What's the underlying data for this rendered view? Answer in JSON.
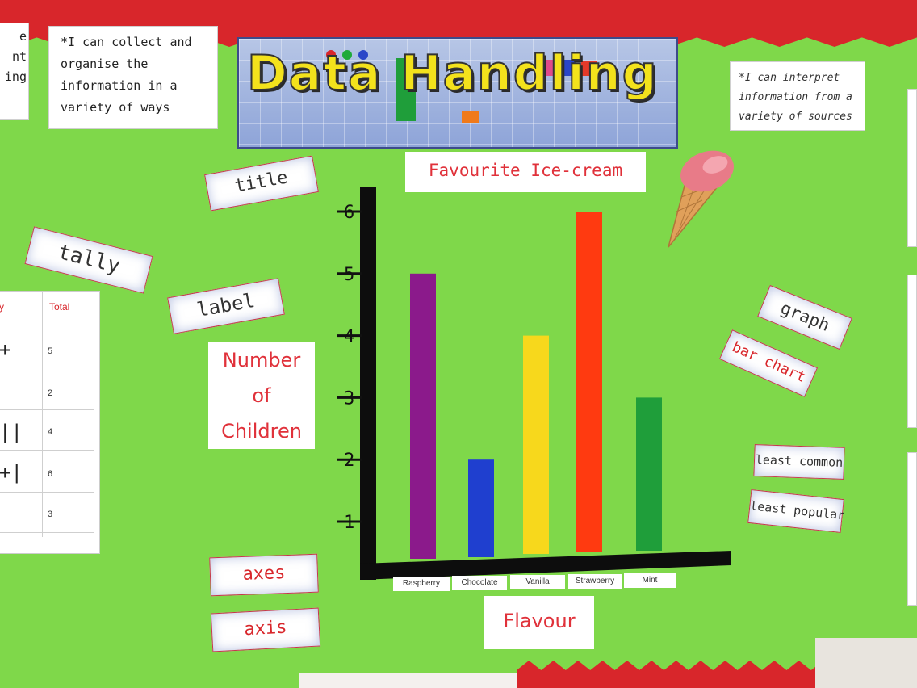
{
  "board": {
    "top_colors": {
      "border": "#d8262b",
      "background": "#7fd84a"
    },
    "banner_title": "Data Handling",
    "objective_left": "*I can collect and organise the information in a variety of ways",
    "objective_right": "*I can interpret information from a variety of sources",
    "partial_left_card": [
      "e",
      "nt",
      "ing"
    ]
  },
  "vocab_cards": {
    "title": "title",
    "tally": "tally",
    "label": "label",
    "axes": "axes",
    "axis": "axis",
    "graph": "graph",
    "bar_chart": "bar chart",
    "least_common": "least common",
    "least_popular": "least popular"
  },
  "tally_table": {
    "header_left": "y",
    "header_total": "Total",
    "totals": [
      "5",
      "2",
      "4",
      "6",
      "3"
    ],
    "marks": [
      "+",
      "",
      "||",
      "+|",
      ""
    ]
  },
  "chart_data": {
    "type": "bar",
    "title": "Favourite Ice-cream",
    "xlabel": "Flavour",
    "ylabel": "Number of Children",
    "ylabel_lines": [
      "Number",
      "of",
      "Children"
    ],
    "categories": [
      "Raspberry",
      "Chocolate",
      "Vanilla",
      "Strawberry",
      "Mint"
    ],
    "values": [
      5,
      2,
      4,
      6,
      3
    ],
    "colors": [
      "#8b1a8b",
      "#1f3fcf",
      "#f7d81c",
      "#ff3a10",
      "#1f9e3a"
    ],
    "yticks": [
      "1",
      "2",
      "3",
      "4",
      "5",
      "6"
    ],
    "ylim": [
      0,
      6
    ]
  }
}
